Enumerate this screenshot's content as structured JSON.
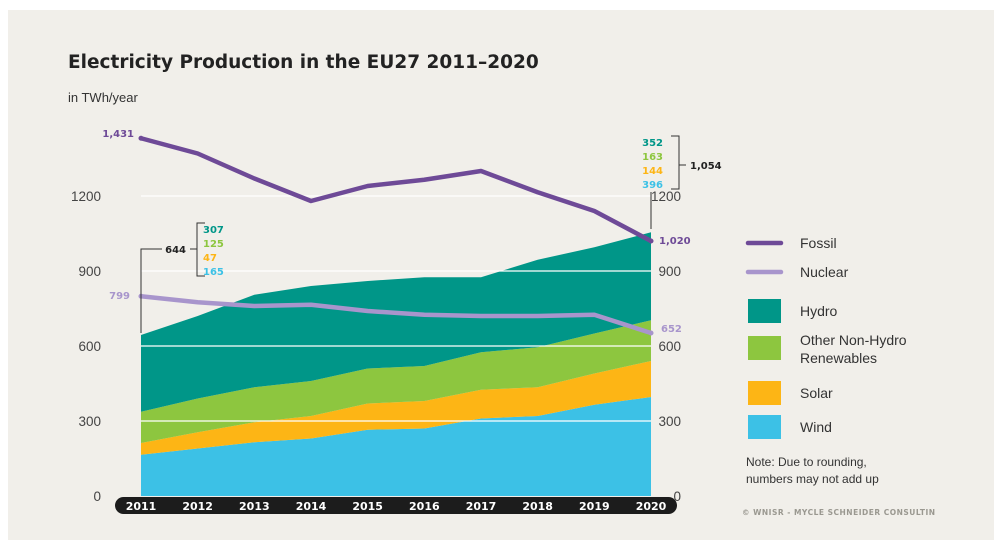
{
  "chart_data": {
    "type": "area",
    "title": "Electricity Production in the EU27 2011–2020",
    "subtitle": "in TWh/year",
    "x": [
      2011,
      2012,
      2013,
      2014,
      2015,
      2016,
      2017,
      2018,
      2019,
      2020
    ],
    "ylim": [
      0,
      1500
    ],
    "yticks": [
      0,
      300,
      600,
      900,
      1200
    ],
    "ytick_labels": [
      "0",
      "300",
      "600",
      "900",
      "1200"
    ],
    "xtick_labels": [
      "2011",
      "2012",
      "2013",
      "2014",
      "2015",
      "2016",
      "2017",
      "2018",
      "2019",
      "2020"
    ],
    "stacked_series": [
      {
        "name": "Wind",
        "color": "#3cc1e6",
        "values": [
          165,
          190,
          215,
          230,
          265,
          270,
          310,
          320,
          365,
          396
        ]
      },
      {
        "name": "Solar",
        "color": "#fdb515",
        "values": [
          47,
          65,
          80,
          90,
          105,
          110,
          115,
          115,
          125,
          144
        ]
      },
      {
        "name": "Other Non-Hydro Renewables",
        "color": "#8dc63f",
        "values": [
          125,
          135,
          140,
          140,
          140,
          140,
          150,
          160,
          160,
          163
        ]
      },
      {
        "name": "Hydro",
        "color": "#009688",
        "values": [
          307,
          330,
          370,
          380,
          350,
          355,
          300,
          350,
          345,
          352
        ]
      }
    ],
    "line_series": [
      {
        "name": "Fossil",
        "color": "#6e4a97",
        "values": [
          1431,
          1370,
          1270,
          1180,
          1240,
          1265,
          1300,
          1215,
          1140,
          1020
        ]
      },
      {
        "name": "Nuclear",
        "color": "#a895cc",
        "values": [
          799,
          775,
          760,
          765,
          740,
          725,
          720,
          720,
          725,
          652
        ]
      }
    ],
    "annotations": {
      "fossil_start": "1,431",
      "fossil_end": "1,020",
      "nuclear_start": "799",
      "nuclear_end": "652",
      "start_breakdown": {
        "total": "644",
        "hydro": "307",
        "other": "125",
        "solar": "47",
        "wind": "165"
      },
      "end_breakdown": {
        "total": "1,054",
        "hydro": "352",
        "other": "163",
        "solar": "144",
        "wind": "396"
      }
    },
    "legend": [
      {
        "label": "Fossil",
        "kind": "line",
        "color": "#6e4a97"
      },
      {
        "label": "Nuclear",
        "kind": "line",
        "color": "#a895cc"
      },
      {
        "label": "Hydro",
        "kind": "box",
        "color": "#009688"
      },
      {
        "label": "Other Non-Hydro",
        "label2": "Renewables",
        "kind": "box",
        "color": "#8dc63f"
      },
      {
        "label": "Solar",
        "kind": "box",
        "color": "#fdb515"
      },
      {
        "label": "Wind",
        "kind": "box",
        "color": "#3cc1e6"
      }
    ],
    "legend_position": "right",
    "grid": true,
    "note": [
      "Note: Due to rounding,",
      "numbers may not add up"
    ],
    "credit": "© WNISR - MYCLE SCHNEIDER CONSULTIN"
  }
}
